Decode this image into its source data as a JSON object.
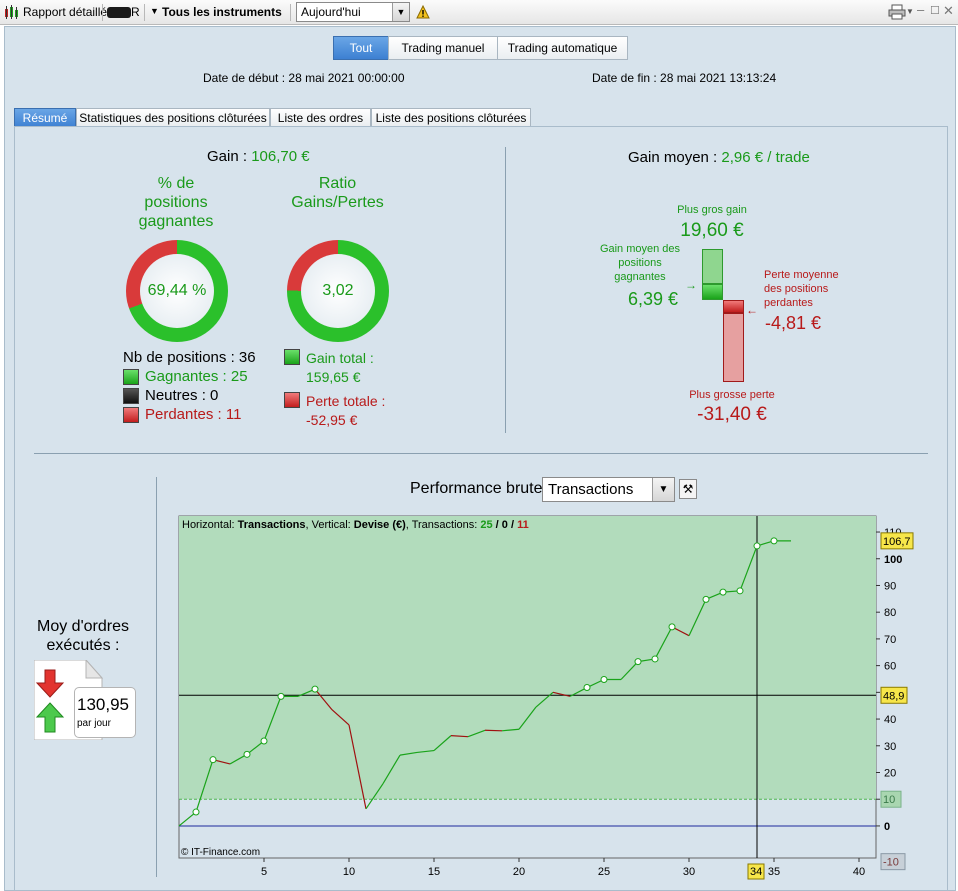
{
  "toolbar": {
    "report_label": "Rapport détaillé",
    "account_label": "R",
    "instruments_label": "Tous les instruments",
    "period_value": "Aujourd'hui"
  },
  "mode_buttons": {
    "all": "Tout",
    "manual": "Trading manuel",
    "auto": "Trading automatique"
  },
  "dates": {
    "start": "Date de début :  28 mai 2021 00:00:00",
    "end": "Date de fin :  28 mai 2021 13:13:24"
  },
  "tabs": [
    "Résumé",
    "Statistiques des positions clôturées",
    "Liste des ordres",
    "Liste des positions clôturées"
  ],
  "summary": {
    "gain_label": "Gain : ",
    "gain_value": "106,70 €",
    "win_pct_title_1": "% de",
    "win_pct_title_2": "positions",
    "win_pct_title_3": "gagnantes",
    "win_pct_value": "69,44 %",
    "win_fraction": 0.6944,
    "ratio_title_1": "Ratio",
    "ratio_title_2": "Gains/Pertes",
    "ratio_value": "3,02",
    "ratio_green_fraction": 0.751,
    "nb_positions": "Nb de positions : 36",
    "winners": "Gagnantes : 25",
    "neutral": "Neutres : 0",
    "losers": "Perdantes : 11",
    "total_gain_label": "Gain total :",
    "total_gain_value": "159,65 €",
    "total_loss_label": "Perte totale :",
    "total_loss_value": "-52,95 €"
  },
  "avg_gain": {
    "label": "Gain moyen : ",
    "value": "2,96 € / trade",
    "best_label": "Plus gros gain",
    "best_value": "19,60 €",
    "avg_win_label_1": "Gain moyen des",
    "avg_win_label_2": "positions",
    "avg_win_label_3": "gagnantes",
    "avg_win_value": "6,39 €",
    "avg_loss_label_1": "Perte moyenne",
    "avg_loss_label_2": "des positions",
    "avg_loss_label_3": "perdantes",
    "avg_loss_value": "-4,81 €",
    "worst_label": "Plus grosse perte",
    "worst_value": "-31,40 €"
  },
  "orders": {
    "title_1": "Moy d'ordres",
    "title_2": "exécutés :",
    "value": "130,95",
    "unit": "par jour"
  },
  "performance": {
    "title": "Performance brute",
    "select_value": "Transactions"
  },
  "chart_data": {
    "type": "line",
    "header_prefix": "Horizontal: ",
    "header_h": "Transactions",
    "header_mid": ", Vertical: ",
    "header_v": "Devise (€)",
    "header_tx": ", Transactions: ",
    "header_win": "25",
    "header_sep1": " / ",
    "header_neutral": "0",
    "header_sep2": " / ",
    "header_loss": "11",
    "copyright": "© IT-Finance.com",
    "xlim": [
      0,
      41
    ],
    "ylim": [
      -12,
      116
    ],
    "x_ticks": [
      5,
      10,
      15,
      20,
      25,
      30,
      35,
      40
    ],
    "y_ticks": [
      0,
      10,
      20,
      30,
      40,
      50,
      60,
      70,
      80,
      90,
      100,
      110
    ],
    "y_tick_labels": [
      "0",
      "10",
      "20",
      "30",
      "40",
      "",
      "60",
      "70",
      "80",
      "90",
      "100",
      "110"
    ],
    "x": [
      0,
      1,
      2,
      3,
      4,
      5,
      6,
      7,
      8,
      9,
      10,
      11,
      12,
      13,
      14,
      15,
      16,
      17,
      18,
      19,
      20,
      21,
      22,
      23,
      24,
      25,
      26,
      27,
      28,
      29,
      30,
      31,
      32,
      33,
      34,
      35,
      36
    ],
    "y": [
      0,
      5.2,
      24.8,
      23.2,
      26.8,
      31.8,
      48.5,
      48.5,
      51.2,
      43.5,
      37.8,
      6.4,
      15.8,
      26.5,
      27.5,
      28.2,
      33.8,
      33.4,
      35.8,
      35.6,
      36.2,
      44.5,
      50,
      48.5,
      51.8,
      54.8,
      54.8,
      61.5,
      62.5,
      74.5,
      71.2,
      84.8,
      87.5,
      88,
      104.8,
      106.7,
      106.7
    ],
    "marker_x": [
      1,
      2,
      4,
      5,
      6,
      8,
      24,
      25,
      27,
      28,
      29,
      31,
      32,
      33,
      34,
      35
    ],
    "crosshair_x": 34,
    "crosshair_x_label": "34",
    "crosshair_y": 48.9,
    "crosshair_y_label": "48,9",
    "last_value_label": "106,7",
    "threshold_y": 10,
    "threshold_label": "10",
    "min_label": "-10",
    "min_y": -10,
    "colors": {
      "up": "#1aa31a",
      "down": "#a01010",
      "area": "#b2dcbc",
      "zero_line": "#1c2a9c"
    }
  }
}
